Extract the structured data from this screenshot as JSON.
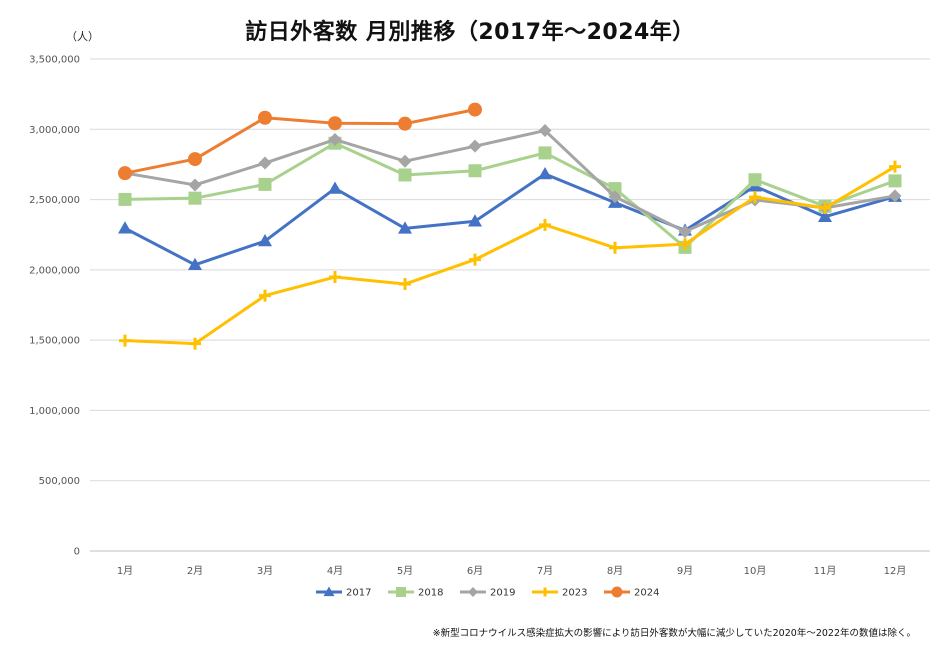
{
  "chart_data": {
    "type": "line",
    "title": "訪日外客数 月別推移（2017年～2024年）",
    "y_unit": "（人）",
    "ylim": [
      0,
      3500000
    ],
    "y_ticks": [
      0,
      500000,
      1000000,
      1500000,
      2000000,
      2500000,
      3000000,
      3500000
    ],
    "y_tick_labels": [
      "0",
      "500,000",
      "1,000,000",
      "1,500,000",
      "2,000,000",
      "2,500,000",
      "3,000,000",
      "3,500,000"
    ],
    "categories": [
      "1月",
      "2月",
      "3月",
      "4月",
      "5月",
      "6月",
      "7月",
      "8月",
      "9月",
      "10月",
      "11月",
      "12月"
    ],
    "grid": "horizontal",
    "legend_position": "bottom",
    "series": [
      {
        "name": "2017",
        "color": "#4472C4",
        "marker": "triangle",
        "values": [
          2296000,
          2036000,
          2205000,
          2579000,
          2295000,
          2346000,
          2682000,
          2478000,
          2281000,
          2595000,
          2378000,
          2521000
        ]
      },
      {
        "name": "2018",
        "color": "#A9D18E",
        "marker": "square",
        "values": [
          2501000,
          2510000,
          2608000,
          2901000,
          2675000,
          2705000,
          2832000,
          2578000,
          2160000,
          2641000,
          2452000,
          2633000
        ]
      },
      {
        "name": "2019",
        "color": "#A5A5A5",
        "marker": "diamond",
        "values": [
          2689000,
          2604000,
          2760000,
          2927000,
          2773000,
          2880000,
          2991000,
          2520000,
          2272000,
          2497000,
          2441000,
          2526000
        ]
      },
      {
        "name": "2023",
        "color": "#FFC000",
        "marker": "plus",
        "values": [
          1497000,
          1475000,
          1817000,
          1949000,
          1899000,
          2073000,
          2320000,
          2157000,
          2183000,
          2517000,
          2440000,
          2734000
        ]
      },
      {
        "name": "2024",
        "color": "#ED7D31",
        "marker": "circle",
        "values": [
          2688000,
          2788000,
          3082000,
          3043000,
          3040000,
          3140000,
          null,
          null,
          null,
          null,
          null,
          null
        ]
      }
    ]
  },
  "footnote": "※新型コロナウイルス感染症拡大の影響により訪日外客数が大幅に減少していた2020年～2022年の数値は除く。"
}
